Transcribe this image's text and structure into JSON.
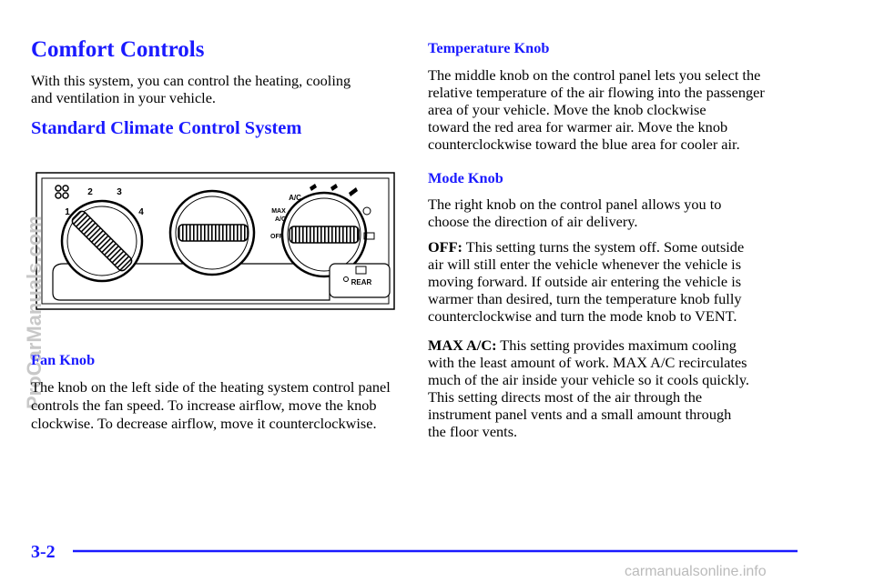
{
  "title": "Comfort Controls",
  "intro": [
    "With this system, you can control the heating, cooling",
    "and ventilation in your vehicle."
  ],
  "section_heading": "Standard Climate Control System",
  "figure": {
    "fan_labels": [
      "1",
      "2",
      "3",
      "4"
    ],
    "mode_labels": [
      "A/C",
      "MAX",
      "A/C",
      "OFF"
    ],
    "rear_button": "REAR"
  },
  "fan_knob": {
    "heading": "Fan Knob",
    "lines": [
      "The knob on the left side of the heating system control panel",
      "controls the fan speed. To increase airflow, move the knob",
      "clockwise. To decrease airflow, move it counterclockwise."
    ]
  },
  "temperature_knob": {
    "heading": "Temperature Knob",
    "lines": [
      "The middle knob on the control panel lets you select the",
      "relative temperature of the air flowing into the passenger",
      "area of your vehicle. Move the knob clockwise",
      "toward the red area for warmer air. Move the knob",
      "counterclockwise toward the blue area for cooler air."
    ]
  },
  "mode_knob": {
    "heading": "Mode Knob",
    "lines": [
      "The right knob on the control panel allows you to",
      "choose the direction of air delivery."
    ]
  },
  "off": {
    "label": "OFF:",
    "lines": [
      "This setting turns the system off. Some outside",
      "air will still enter the vehicle whenever the vehicle is",
      "moving forward. If outside air entering the vehicle is",
      "warmer than desired, turn the temperature knob fully",
      "counterclockwise and turn the mode knob to VENT."
    ]
  },
  "max_ac": {
    "label": "MAX A/C:",
    "lines": [
      "This setting provides maximum cooling",
      "with the least amount of work. MAX A/C recirculates",
      "much of the air inside your vehicle so it cools quickly.",
      "This setting directs most of the air through the",
      "instrument panel vents and a small amount through",
      "the floor vents."
    ]
  },
  "page_number": "3-2",
  "watermarks": {
    "side": "ProCarManuals.com",
    "bottom": "carmanualsonline.info"
  }
}
